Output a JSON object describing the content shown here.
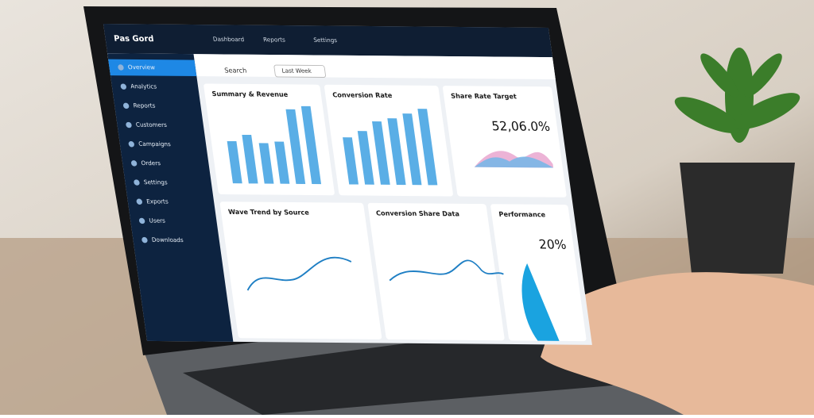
{
  "app": {
    "logo": "Pas Gord",
    "topbar": [
      "Dashboard",
      "Reports",
      "Settings"
    ],
    "search": "Search",
    "filter": "Last Week",
    "sidebar": [
      "Overview",
      "Analytics",
      "Reports",
      "Customers",
      "Campaigns",
      "Orders",
      "Settings",
      "Exports",
      "Users",
      "Downloads"
    ]
  },
  "cards": [
    {
      "title": "Summary & Revenue"
    },
    {
      "title": "Conversion Rate"
    },
    {
      "title": "Share Rate Target",
      "kpi": "52,06.0%"
    },
    {
      "title": "Wave Trend by Source"
    },
    {
      "title": "Conversion Share Data"
    },
    {
      "title": "Performance",
      "kpi": "20%"
    }
  ],
  "chart_data": {
    "type": "bar",
    "values": [
      52,
      60,
      50,
      52,
      92,
      96,
      58,
      66,
      78,
      82,
      88,
      94
    ],
    "color": "#5aaee6"
  }
}
